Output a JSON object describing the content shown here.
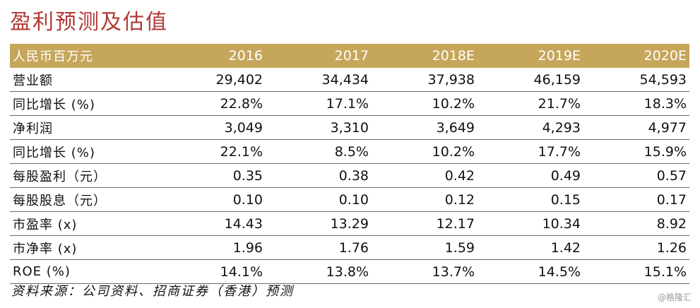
{
  "title": "盈利预测及估值",
  "table": {
    "header": {
      "label": "人民币百万元",
      "years": [
        "2016",
        "2017",
        "2018E",
        "2019E",
        "2020E"
      ]
    },
    "rows": [
      {
        "label": "营业额",
        "values": [
          "29,402",
          "34,434",
          "37,938",
          "46,159",
          "54,593"
        ]
      },
      {
        "label": "同比增长 (%)",
        "values": [
          "22.8%",
          "17.1%",
          "10.2%",
          "21.7%",
          "18.3%"
        ]
      },
      {
        "label": "净利润",
        "values": [
          "3,049",
          "3,310",
          "3,649",
          "4,293",
          "4,977"
        ]
      },
      {
        "label": "同比增长 (%)",
        "values": [
          "22.1%",
          "8.5%",
          "10.2%",
          "17.7%",
          "15.9%"
        ]
      },
      {
        "label": "每股盈利（元）",
        "values": [
          "0.35",
          "0.38",
          "0.42",
          "0.49",
          "0.57"
        ]
      },
      {
        "label": "每股股息（元）",
        "values": [
          "0.10",
          "0.10",
          "0.12",
          "0.15",
          "0.17"
        ]
      },
      {
        "label": "市盈率 (x)",
        "values": [
          "14.43",
          "13.29",
          "12.17",
          "10.34",
          "8.92"
        ]
      },
      {
        "label": "市净率 (x)",
        "values": [
          "1.96",
          "1.76",
          "1.59",
          "1.42",
          "1.26"
        ]
      },
      {
        "label": "ROE (%)",
        "values": [
          "14.1%",
          "13.8%",
          "13.7%",
          "14.5%",
          "15.1%"
        ]
      }
    ]
  },
  "source": "资料来源：公司资料、招商证券（香港）预测",
  "watermark": "@格隆汇",
  "colors": {
    "title": "#b23a36",
    "header_bg": "#c6a65b",
    "header_text": "#ffffff",
    "row_border": "#6a6a6a"
  }
}
